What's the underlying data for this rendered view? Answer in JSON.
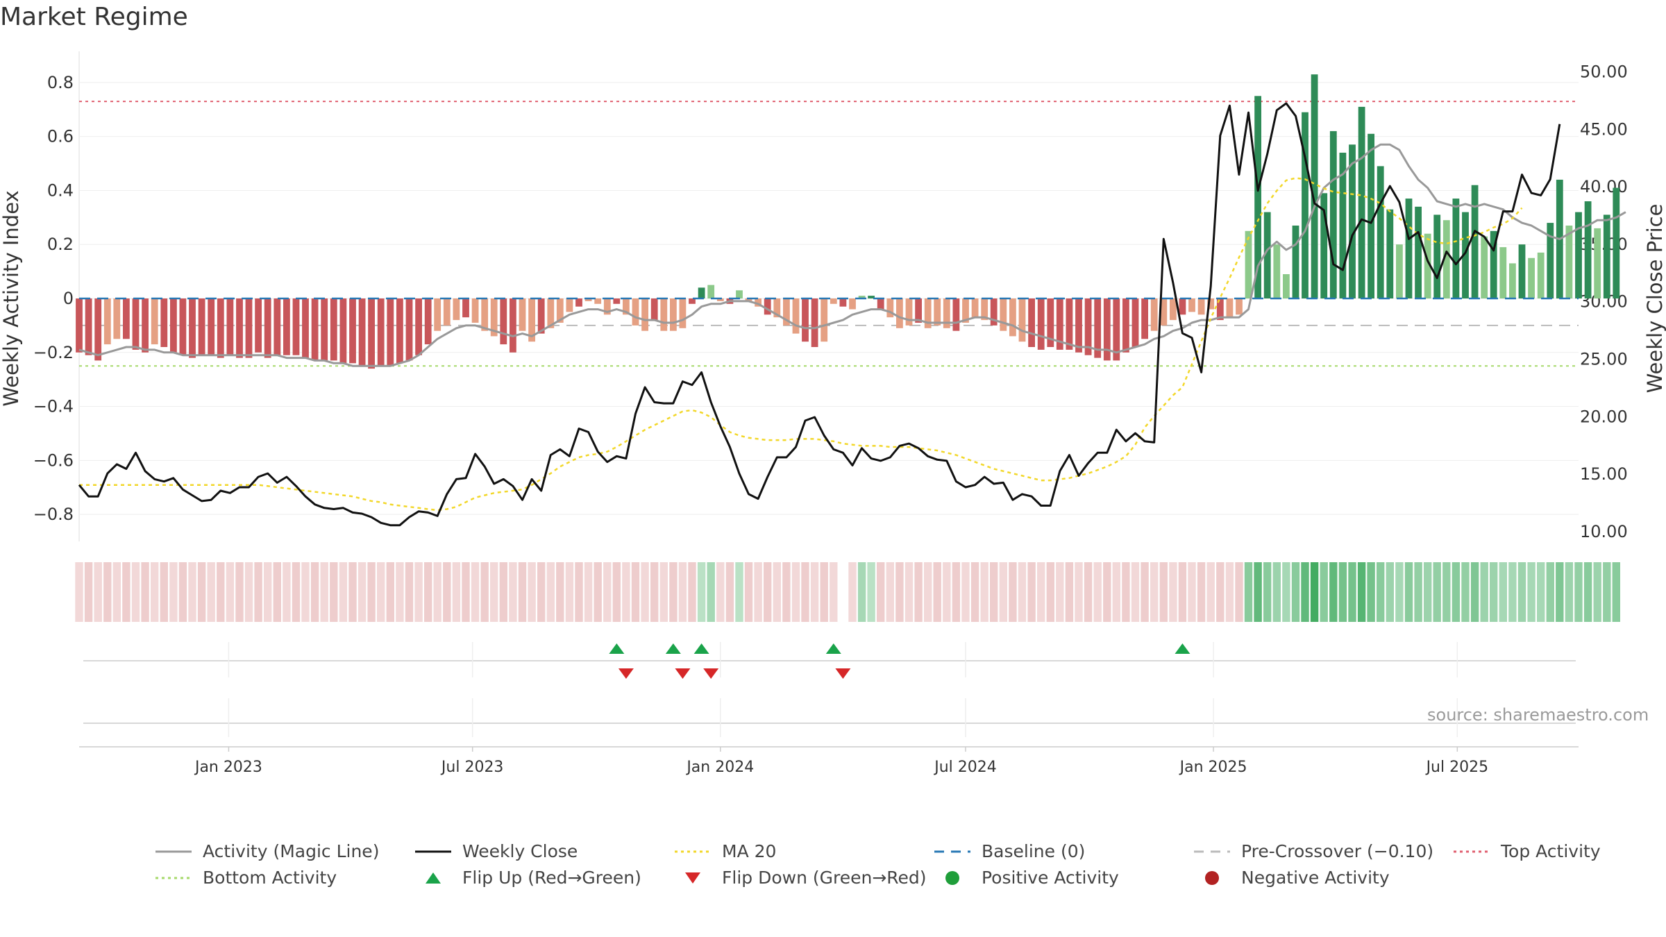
{
  "title": "Market Regime",
  "source": "source: sharemaestro.com",
  "chart_data": {
    "type": "bar",
    "y_left": {
      "label": "Weekly Activity Index",
      "ticks": [
        0.8,
        0.6,
        0.4,
        0.2,
        0,
        -0.2,
        -0.4,
        -0.6,
        -0.8
      ],
      "tick_labels": [
        "0.8",
        "0.6",
        "0.4",
        "0.2",
        "0",
        "−0.2",
        "−0.4",
        "−0.6",
        "−0.8"
      ],
      "ylim": [
        -0.9,
        0.9
      ]
    },
    "y_right": {
      "label": "Weekly Close Price",
      "ticks": [
        "50.00",
        "45.00",
        "40.00",
        "35.00",
        "30.00",
        "25.00",
        "20.00",
        "15.00",
        "10.00"
      ],
      "tick_values": [
        50,
        45,
        40,
        35,
        30,
        25,
        20,
        15,
        10
      ],
      "ylim": [
        9.09,
        51.36
      ]
    },
    "x_axis": {
      "range": [
        "2022-09-12",
        "2025-09-29"
      ],
      "ticks": [
        {
          "date": "2023-01-01",
          "label": "Jan 2023"
        },
        {
          "date": "2023-07-01",
          "label": "Jul 2023"
        },
        {
          "date": "2024-01-01",
          "label": "Jan 2024"
        },
        {
          "date": "2024-07-01",
          "label": "Jul 2024"
        },
        {
          "date": "2025-01-01",
          "label": "Jan 2025"
        },
        {
          "date": "2025-07-01",
          "label": "Jul 2025"
        }
      ]
    },
    "reference_lines": {
      "top_activity": 0.73,
      "bottom_activity": -0.25,
      "baseline": 0,
      "pre_crossover": -0.1
    },
    "bar_start": "2022-09-12",
    "bar_step_days": 7,
    "activity": [
      -0.2,
      -0.21,
      -0.23,
      -0.17,
      -0.15,
      -0.15,
      -0.19,
      -0.2,
      -0.17,
      -0.18,
      -0.2,
      -0.21,
      -0.22,
      -0.21,
      -0.21,
      -0.22,
      -0.21,
      -0.22,
      -0.22,
      -0.2,
      -0.22,
      -0.21,
      -0.21,
      -0.21,
      -0.22,
      -0.23,
      -0.23,
      -0.23,
      -0.24,
      -0.24,
      -0.25,
      -0.26,
      -0.25,
      -0.25,
      -0.24,
      -0.23,
      -0.21,
      -0.17,
      -0.12,
      -0.1,
      -0.08,
      -0.07,
      -0.09,
      -0.12,
      -0.14,
      -0.17,
      -0.2,
      -0.12,
      -0.16,
      -0.13,
      -0.11,
      -0.09,
      -0.05,
      -0.03,
      -0.01,
      -0.02,
      -0.06,
      -0.02,
      -0.06,
      -0.1,
      -0.12,
      -0.08,
      -0.12,
      -0.12,
      -0.11,
      -0.02,
      0.04,
      0.05,
      -0.01,
      -0.02,
      0.03,
      -0.01,
      -0.03,
      -0.06,
      -0.07,
      -0.1,
      -0.13,
      -0.16,
      -0.18,
      -0.16,
      -0.02,
      -0.03,
      -0.04,
      0.01,
      0.01,
      -0.04,
      -0.07,
      -0.11,
      -0.1,
      -0.09,
      -0.11,
      -0.1,
      -0.11,
      -0.12,
      -0.09,
      -0.07,
      -0.08,
      -0.1,
      -0.12,
      -0.14,
      -0.16,
      -0.18,
      -0.19,
      -0.18,
      -0.19,
      -0.19,
      -0.2,
      -0.21,
      -0.22,
      -0.23,
      -0.23,
      -0.2,
      -0.18,
      -0.15,
      -0.12,
      -0.1,
      -0.08,
      -0.06,
      -0.05,
      -0.06,
      -0.04,
      -0.08,
      -0.07,
      -0.06,
      0.25,
      0.75,
      0.32,
      0.2,
      0.09,
      0.27,
      0.69,
      0.83,
      0.39,
      0.62,
      0.54,
      0.57,
      0.71,
      0.61,
      0.49,
      0.33,
      0.2,
      0.37,
      0.34,
      0.24,
      0.31,
      0.29,
      0.37,
      0.32,
      0.42,
      0.23,
      0.25,
      0.19,
      0.13,
      0.2,
      0.15,
      0.17,
      0.28,
      0.44,
      0.27,
      0.32,
      0.36,
      0.26,
      0.31,
      0.41
    ],
    "magic_line": [
      -0.19,
      -0.2,
      -0.21,
      -0.2,
      -0.19,
      -0.18,
      -0.18,
      -0.19,
      -0.19,
      -0.2,
      -0.2,
      -0.21,
      -0.21,
      -0.21,
      -0.21,
      -0.21,
      -0.21,
      -0.21,
      -0.21,
      -0.21,
      -0.21,
      -0.21,
      -0.22,
      -0.22,
      -0.22,
      -0.23,
      -0.23,
      -0.24,
      -0.24,
      -0.25,
      -0.25,
      -0.25,
      -0.25,
      -0.25,
      -0.24,
      -0.23,
      -0.21,
      -0.18,
      -0.15,
      -0.13,
      -0.11,
      -0.1,
      -0.1,
      -0.11,
      -0.12,
      -0.13,
      -0.14,
      -0.13,
      -0.14,
      -0.12,
      -0.1,
      -0.08,
      -0.06,
      -0.05,
      -0.04,
      -0.04,
      -0.05,
      -0.04,
      -0.05,
      -0.07,
      -0.08,
      -0.08,
      -0.09,
      -0.09,
      -0.08,
      -0.06,
      -0.03,
      -0.02,
      -0.02,
      -0.01,
      -0.01,
      -0.01,
      -0.02,
      -0.04,
      -0.06,
      -0.08,
      -0.1,
      -0.11,
      -0.11,
      -0.1,
      -0.09,
      -0.08,
      -0.06,
      -0.05,
      -0.04,
      -0.04,
      -0.05,
      -0.07,
      -0.08,
      -0.08,
      -0.09,
      -0.09,
      -0.09,
      -0.09,
      -0.08,
      -0.07,
      -0.07,
      -0.08,
      -0.09,
      -0.1,
      -0.12,
      -0.13,
      -0.14,
      -0.15,
      -0.16,
      -0.17,
      -0.18,
      -0.18,
      -0.19,
      -0.19,
      -0.2,
      -0.19,
      -0.18,
      -0.17,
      -0.15,
      -0.14,
      -0.12,
      -0.11,
      -0.09,
      -0.08,
      -0.08,
      -0.07,
      -0.07,
      -0.07,
      -0.04,
      0.12,
      0.18,
      0.21,
      0.18,
      0.2,
      0.25,
      0.34,
      0.41,
      0.44,
      0.46,
      0.5,
      0.52,
      0.55,
      0.57,
      0.57,
      0.55,
      0.49,
      0.44,
      0.41,
      0.36,
      0.35,
      0.34,
      0.35,
      0.34,
      0.35,
      0.34,
      0.33,
      0.3,
      0.28,
      0.27,
      0.25,
      0.23,
      0.22,
      0.24,
      0.26,
      0.27,
      0.29,
      0.29,
      0.3,
      0.32
    ],
    "close": [
      14.0,
      13.0,
      13.0,
      15.0,
      15.8,
      15.4,
      16.8,
      15.2,
      14.5,
      14.3,
      14.6,
      13.6,
      13.1,
      12.6,
      12.7,
      13.5,
      13.3,
      13.8,
      13.8,
      14.7,
      15.0,
      14.2,
      14.7,
      13.9,
      13.0,
      12.3,
      12.0,
      11.9,
      12.0,
      11.6,
      11.5,
      11.2,
      10.7,
      10.5,
      10.5,
      11.2,
      11.7,
      11.6,
      11.3,
      13.2,
      14.5,
      14.6,
      16.7,
      15.6,
      14.1,
      14.5,
      13.9,
      12.7,
      14.5,
      13.5,
      16.6,
      17.1,
      16.5,
      18.9,
      18.6,
      16.9,
      16.0,
      16.5,
      16.3,
      20.2,
      22.5,
      21.2,
      21.1,
      21.1,
      23.0,
      22.7,
      23.8,
      21.2,
      19.1,
      17.3,
      15.0,
      13.2,
      12.8,
      14.7,
      16.4,
      16.4,
      17.3,
      19.6,
      19.9,
      18.3,
      17.1,
      16.8,
      15.7,
      17.2,
      16.3,
      16.1,
      16.4,
      17.4,
      17.6,
      17.2,
      16.5,
      16.2,
      16.1,
      14.3,
      13.8,
      14.0,
      14.7,
      14.1,
      14.2,
      12.7,
      13.2,
      13.0,
      12.2,
      12.2,
      15.2,
      16.6,
      14.8,
      15.9,
      16.8,
      16.8,
      18.8,
      17.8,
      18.5,
      17.8,
      17.7,
      35.4,
      31.6,
      27.2,
      26.8,
      23.8,
      31.3,
      44.4,
      47.0,
      41.0,
      46.4,
      39.6,
      42.8,
      46.6,
      47.2,
      46.1,
      42.5,
      38.5,
      37.9,
      33.2,
      32.7,
      35.7,
      37.1,
      36.8,
      38.5,
      40.0,
      38.6,
      35.4,
      36.0,
      33.5,
      32.0,
      34.3,
      33.2,
      34.2,
      36.1,
      35.6,
      34.4,
      37.8,
      37.8,
      41.0,
      39.4,
      39.2,
      40.6,
      45.4
    ],
    "ma20": [
      14.0,
      14.0,
      14.0,
      14.0,
      14.0,
      14.0,
      14.0,
      14.0,
      14.0,
      14.0,
      14.0,
      14.0,
      14.0,
      14.0,
      14.0,
      14.0,
      14.0,
      14.0,
      14.0,
      14.0,
      13.9,
      13.8,
      13.7,
      13.6,
      13.5,
      13.4,
      13.3,
      13.2,
      13.1,
      13.0,
      12.8,
      12.6,
      12.5,
      12.3,
      12.2,
      12.1,
      12.0,
      11.9,
      11.8,
      11.9,
      12.1,
      12.5,
      12.9,
      13.1,
      13.3,
      13.4,
      13.5,
      13.6,
      14.0,
      14.5,
      15.0,
      15.6,
      16.0,
      16.4,
      16.6,
      16.7,
      16.9,
      17.3,
      17.8,
      18.3,
      18.8,
      19.2,
      19.6,
      20.0,
      20.4,
      20.5,
      20.3,
      19.9,
      19.2,
      18.6,
      18.3,
      18.1,
      18.0,
      17.9,
      17.9,
      17.9,
      18.0,
      18.0,
      18.0,
      17.9,
      17.8,
      17.6,
      17.5,
      17.4,
      17.4,
      17.4,
      17.3,
      17.3,
      17.3,
      17.2,
      17.1,
      17.0,
      16.8,
      16.6,
      16.3,
      16.0,
      15.7,
      15.4,
      15.2,
      15.0,
      14.8,
      14.6,
      14.4,
      14.4,
      14.5,
      14.6,
      14.8,
      15.0,
      15.3,
      15.6,
      16.0,
      16.5,
      17.5,
      19.0,
      20.0,
      20.9,
      21.8,
      22.5,
      24.5,
      26.5,
      28.5,
      30.3,
      32.0,
      33.8,
      35.5,
      37.0,
      38.5,
      39.6,
      40.5,
      40.7,
      40.6,
      40.2,
      39.8,
      39.5,
      39.4,
      39.3,
      39.2,
      38.9,
      38.5,
      37.8,
      37.2,
      36.5,
      35.8,
      35.4,
      35.1,
      35.0,
      35.2,
      35.5,
      35.7,
      36.0,
      36.4,
      36.7,
      37.2,
      38.1
    ],
    "strip_levels": [
      0.35,
      0.45,
      0.35,
      0.45,
      0.35,
      0.45,
      0.35,
      0.45,
      0.35,
      0.45,
      0.35,
      0.45,
      0.35,
      0.45,
      0.35,
      0.45,
      0.35,
      0.45,
      0.35,
      0.45,
      0.35,
      0.45,
      0.35,
      0.45,
      0.35,
      0.45,
      0.35,
      0.45,
      0.35,
      0.45,
      0.35,
      0.45,
      0.35,
      0.45,
      0.35,
      0.45,
      0.35,
      0.45,
      0.35,
      0.45,
      0.35,
      0.45,
      0.35,
      0.45,
      0.35,
      0.45,
      0.35,
      0.45,
      0.35,
      0.45,
      0.35,
      0.45,
      0.35,
      0.45,
      0.35,
      0.45,
      0.35,
      0.45,
      0.35,
      0.45,
      0.35,
      0.45,
      0.35,
      0.45,
      0.35,
      0.45,
      0.35,
      0.45,
      0.35,
      0.45,
      0.35,
      0.45,
      0.35,
      0.45,
      0.35,
      0.45,
      0.35,
      0.45,
      0.35,
      0.45,
      0.35,
      0.45,
      0.35,
      0.45,
      0.35,
      0.45,
      0.35,
      0.45,
      0.35,
      0.45,
      0.35,
      0.45,
      0.35,
      0.45,
      0.35,
      0.45,
      0.35,
      0.45,
      0.35,
      0.45,
      0.35,
      0.45,
      0.35,
      0.45,
      0.35,
      0.45,
      0.35,
      0.45,
      0.35,
      0.45,
      0.35,
      0.45,
      0.35,
      0.45,
      0.35,
      0.45,
      0.35,
      0.45,
      0.35,
      0.45,
      0.35,
      0.45,
      0.35,
      0.45,
      0.6,
      0.8,
      0.6,
      0.5,
      0.45,
      0.6,
      0.8,
      0.95,
      0.6,
      0.8,
      0.7,
      0.7,
      0.85,
      0.7,
      0.6,
      0.5,
      0.45,
      0.6,
      0.55,
      0.5,
      0.55,
      0.55,
      0.6,
      0.55,
      0.65,
      0.5,
      0.5,
      0.45,
      0.45,
      0.5,
      0.45,
      0.45,
      0.55,
      0.65,
      0.5,
      0.55,
      0.6,
      0.5,
      0.55,
      0.6
    ],
    "strip_gap": [
      81
    ],
    "flip_up": [
      "2023-10-16",
      "2023-11-27",
      "2023-12-18",
      "2024-03-25",
      "2024-12-09"
    ],
    "flip_down": [
      "2023-10-23",
      "2023-12-04",
      "2023-12-25",
      "2024-04-01"
    ],
    "colors": {
      "bar_negative_dark": "#c8565a",
      "bar_negative_light": "#e5a083",
      "bar_positive_dark": "#2e8b57",
      "bar_positive_light": "#8cc98a",
      "magic_line": "#999999",
      "close": "#111111",
      "ma20": "#f2d729",
      "baseline": "#2878b5",
      "pre_crossover": "#bbbbbb",
      "top_activity": "#e06070",
      "bottom_activity": "#a6d96a",
      "flip_up": "#1aa34a",
      "flip_down": "#d62728",
      "positive_activity": "#1f9e3a",
      "negative_activity": "#b22222",
      "strip_negative": "#d99090",
      "strip_positive": "#3aa85a"
    }
  },
  "legend": [
    {
      "label": "Activity (Magic Line)",
      "kind": "line",
      "color": "#999999",
      "dash": "none"
    },
    {
      "label": "Weekly Close",
      "kind": "line",
      "color": "#111111",
      "dash": "none"
    },
    {
      "label": "MA 20",
      "kind": "line",
      "color": "#f2d729",
      "dash": "dot"
    },
    {
      "label": "Baseline (0)",
      "kind": "line",
      "color": "#2878b5",
      "dash": "dash"
    },
    {
      "label": "Pre-Crossover (−0.10)",
      "kind": "line",
      "color": "#bbbbbb",
      "dash": "dash"
    },
    {
      "label": "Top Activity",
      "kind": "line",
      "color": "#e06070",
      "dash": "dot"
    },
    {
      "label": "Bottom Activity",
      "kind": "line",
      "color": "#a6d96a",
      "dash": "dot"
    },
    {
      "label": "Flip Up (Red→Green)",
      "kind": "tri-up",
      "color": "#1aa34a"
    },
    {
      "label": "Flip Down (Green→Red)",
      "kind": "tri-down",
      "color": "#d62728"
    },
    {
      "label": "Positive Activity",
      "kind": "dot",
      "color": "#1f9e3a"
    },
    {
      "label": "Negative Activity",
      "kind": "dot",
      "color": "#b22222"
    }
  ]
}
